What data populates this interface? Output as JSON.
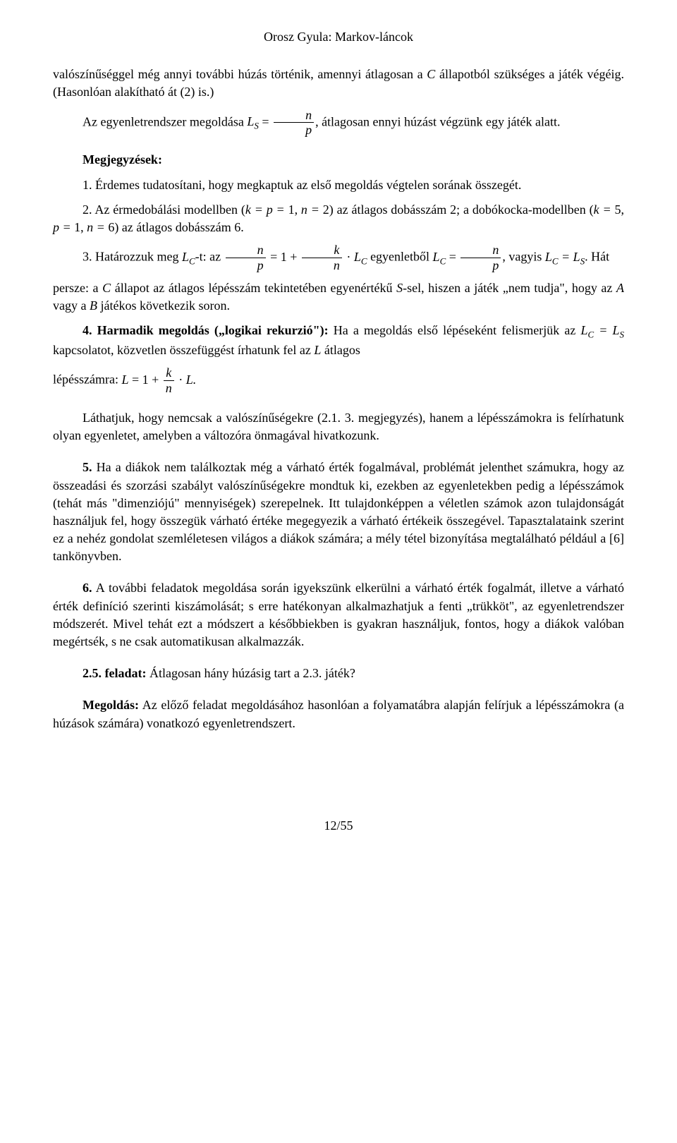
{
  "header": "Orosz Gyula: Markov-láncok",
  "intro": {
    "line1": "valószínűséggel még annyi további húzás történik, amennyi átlagosan a ",
    "line1_c": "C",
    "line1_end": " állapotból szükséges a játék végéig. (Hasonlóan alakítható át (2) is.)",
    "line2_pre": "Az egyenletrendszer megoldása ",
    "line2_ls": "L",
    "line2_sub": "S",
    "line2_eq": " = ",
    "frac_n": "n",
    "frac_p": "p",
    "line2_post": ", átlagosan ennyi húzást végzünk egy játék alatt."
  },
  "megj_title": "Megjegyzések:",
  "m1": "1. Érdemes tudatosítani, hogy megkaptuk az első megoldás végtelen sorának összegét.",
  "m2_a": "2. Az érmedobálási modellben (",
  "m2_b": "k = p = ",
  "m2_c": "1, ",
  "m2_d": "n = ",
  "m2_e": "2) az átlagos dobásszám 2; a dobókocka-modellben (",
  "m2_f": "k = ",
  "m2_g": "5, ",
  "m2_h": "p = ",
  "m2_i": "1, ",
  "m2_j": "n = ",
  "m2_k": "6) az átlagos dobásszám 6.",
  "m3_a": "3. Határozzuk meg ",
  "m3_lc": "L",
  "m3_sub_c": "C",
  "m3_b": "-t: az ",
  "m3_eq": " = 1 + ",
  "m3_dot": " · ",
  "m3_c": " egyenletből ",
  "m3_lc_eq": " = ",
  "m3_d": ", vagyis ",
  "m3_ls_txt": " = L",
  "m3_sub_s": "S",
  "m3_e": ". Hát",
  "m3_f": "persze: a ",
  "m3_g": "C",
  "m3_h": " állapot az átlagos lépésszám tekintetében egyenértékű ",
  "m3_i": "S",
  "m3_j": "-sel, hiszen a játék „nem tudja\", hogy az ",
  "m3_k": "A",
  "m3_l": " vagy a ",
  "m3_m": "B",
  "m3_n": " játékos következik soron.",
  "m4_a": "4. Harmadik megoldás („logikai rekurzió\"):",
  "m4_b": " Ha a megoldás első lépéseként felismerjük az ",
  "m4_c": "L",
  "m4_d": " = L",
  "m4_e": " kapcsolatot, közvetlen összefüggést írhatunk fel az ",
  "m4_f": "L",
  "m4_g": " átlagos",
  "m4_h": "lépésszámra: ",
  "m4_i": "L",
  "m4_j": " = 1 + ",
  "m4_k_num": "k",
  "m4_k_den": "n",
  "m4_l": " · ",
  "m4_m": "L.",
  "p5": "Láthatjuk, hogy nemcsak a valószínűségekre (2.1. 3. megjegyzés), hanem a lépésszámokra is felírhatunk olyan egyenletet, amelyben a változóra önmagával hivatkozunk.",
  "p6_a": "5.",
  "p6_b": " Ha a diákok nem találkoztak még a várható érték fogalmával, problémát jelenthet számukra, hogy az összeadási és szorzási szabályt valószínűségekre mondtuk ki, ezekben az egyenletekben pedig a lépésszámok (tehát más \"dimenziójú\" mennyiségek) szerepelnek. Itt tulajdonképpen a véletlen számok azon tulajdonságát használjuk fel, hogy összegük várható értéke megegyezik a várható értékeik összegével. Tapasztalataink szerint ez a nehéz gondolat szemléletesen világos a diákok számára; a mély tétel bizonyítása megtalálható például a [6] tankönyvben.",
  "p7_a": "6.",
  "p7_b": " A további feladatok megoldása során igyekszünk elkerülni a várható érték fogalmát, illetve a várható érték definíció szerinti kiszámolását; s erre hatékonyan alkalmazhatjuk a fenti „trükköt\", az egyenletrendszer módszerét. Mivel tehát ezt a módszert a későbbiekben is gyakran használjuk, fontos, hogy a diákok valóban megértsék, s ne csak automatikusan alkalmazzák.",
  "feladat_a": "2.5. feladat:",
  "feladat_b": " Átlagosan hány húzásig tart a 2.3. játék?",
  "meg_a": "Megoldás:",
  "meg_b": " Az előző feladat megoldásához hasonlóan a folyamatábra alapján felírjuk a lépésszámokra (a húzások számára) vonatkozó egyenletrendszert.",
  "footer": "12/55"
}
